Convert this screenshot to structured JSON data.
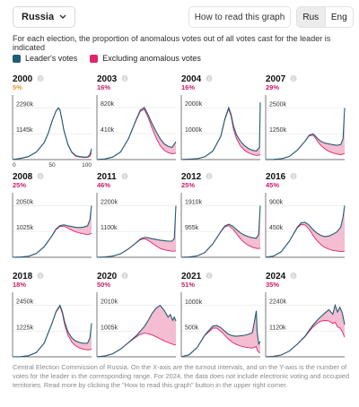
{
  "header": {
    "country": "Russia",
    "howto_label": "How to read this graph",
    "lang_options": [
      "Rus",
      "Eng"
    ],
    "active_lang": "Rus"
  },
  "description": "For each election, the proportion of anomalous votes out of all votes cast for the leader is indicated",
  "legend": {
    "leader_label": "Leader's votes",
    "excluding_label": "Excluding anomalous votes"
  },
  "colors": {
    "leader": "#1f5e72",
    "excluding": "#e0246e",
    "excluding_fill": "#f4bdd1",
    "pct_orange": "#e39a2a",
    "pct_magenta": "#c81d6a",
    "axis": "#444444",
    "grid": "#e4e4e4"
  },
  "info_icon_glyph": "i",
  "chart_data": [
    {
      "type": "line",
      "title": "2000",
      "pct": "5%",
      "pct_color": "orange",
      "ytick_top": "2290k",
      "ytick_mid": "1145k",
      "xticks": [
        "0",
        "50",
        "100"
      ],
      "ylim": [
        0,
        2700
      ],
      "x": [
        0,
        10,
        20,
        30,
        40,
        45,
        50,
        55,
        58,
        60,
        62,
        65,
        70,
        75,
        80,
        85,
        90,
        95,
        98,
        100
      ],
      "series": [
        {
          "values": [
            0,
            50,
            130,
            330,
            750,
            1150,
            1700,
            2150,
            2290,
            2200,
            1850,
            1300,
            680,
            330,
            170,
            130,
            110,
            120,
            210,
            480
          ]
        },
        {
          "values": [
            0,
            50,
            130,
            330,
            750,
            1150,
            1700,
            2150,
            2290,
            2200,
            1850,
            1290,
            660,
            310,
            150,
            110,
            90,
            95,
            150,
            300
          ]
        }
      ]
    },
    {
      "type": "line",
      "title": "2003",
      "pct": "16%",
      "pct_color": "magenta",
      "ytick_top": "820k",
      "ytick_mid": "410k",
      "xticks": [],
      "ylim": [
        0,
        960
      ],
      "x": [
        0,
        10,
        20,
        30,
        40,
        50,
        55,
        60,
        65,
        70,
        75,
        80,
        85,
        90,
        95,
        100
      ],
      "series": [
        {
          "values": [
            0,
            10,
            40,
            120,
            330,
            640,
            780,
            820,
            700,
            560,
            440,
            330,
            250,
            210,
            190,
            280
          ]
        },
        {
          "values": [
            0,
            10,
            40,
            120,
            330,
            630,
            760,
            790,
            660,
            490,
            340,
            220,
            150,
            110,
            90,
            100
          ]
        }
      ]
    },
    {
      "type": "line",
      "title": "2004",
      "pct": "16%",
      "pct_color": "magenta",
      "ytick_top": "2000k",
      "ytick_mid": "1000k",
      "xticks": [],
      "ylim": [
        0,
        2350
      ],
      "x": [
        0,
        20,
        30,
        40,
        50,
        55,
        60,
        63,
        66,
        70,
        75,
        80,
        85,
        90,
        95,
        99,
        100
      ],
      "series": [
        {
          "values": [
            0,
            30,
            110,
            330,
            900,
            1550,
            2000,
            1750,
            1300,
            950,
            700,
            540,
            430,
            360,
            330,
            470,
            2200
          ]
        },
        {
          "values": [
            0,
            30,
            110,
            330,
            890,
            1520,
            1950,
            1680,
            1180,
            800,
            520,
            360,
            260,
            200,
            160,
            180,
            200
          ]
        }
      ]
    },
    {
      "type": "line",
      "title": "2007",
      "pct": "29%",
      "pct_color": "magenta",
      "ytick_top": "2500k",
      "ytick_mid": "1250k",
      "xticks": [],
      "ylim": [
        0,
        2950
      ],
      "x": [
        0,
        10,
        20,
        30,
        40,
        50,
        55,
        60,
        63,
        66,
        70,
        75,
        80,
        85,
        90,
        95,
        98,
        100
      ],
      "series": [
        {
          "values": [
            0,
            10,
            40,
            150,
            450,
            900,
            1180,
            1240,
            1140,
            1000,
            880,
            800,
            760,
            720,
            690,
            720,
            1000,
            2500
          ]
        },
        {
          "values": [
            0,
            10,
            40,
            150,
            450,
            890,
            1150,
            1180,
            1050,
            860,
            680,
            520,
            400,
            320,
            270,
            240,
            260,
            300
          ]
        }
      ]
    },
    {
      "type": "line",
      "title": "2008",
      "pct": "25%",
      "pct_color": "magenta",
      "ytick_top": "2050k",
      "ytick_mid": "1025k",
      "xticks": [],
      "ylim": [
        0,
        2420
      ],
      "x": [
        0,
        10,
        20,
        30,
        40,
        50,
        55,
        60,
        65,
        70,
        75,
        80,
        85,
        90,
        95,
        98,
        100
      ],
      "series": [
        {
          "values": [
            0,
            10,
            40,
            150,
            420,
            860,
            1120,
            1260,
            1290,
            1250,
            1220,
            1190,
            1180,
            1200,
            1250,
            1500,
            2050
          ]
        },
        {
          "values": [
            0,
            10,
            40,
            150,
            420,
            850,
            1100,
            1220,
            1230,
            1160,
            1080,
            1010,
            960,
            930,
            900,
            920,
            950
          ]
        }
      ]
    },
    {
      "type": "line",
      "title": "2011",
      "pct": "46%",
      "pct_color": "magenta",
      "ytick_top": "2200k",
      "ytick_mid": "1100k",
      "xticks": [],
      "ylim": [
        0,
        2600
      ],
      "x": [
        0,
        10,
        20,
        30,
        40,
        50,
        55,
        60,
        65,
        70,
        75,
        80,
        85,
        90,
        95,
        98,
        100
      ],
      "series": [
        {
          "values": [
            0,
            10,
            50,
            150,
            360,
            630,
            780,
            850,
            830,
            790,
            760,
            730,
            710,
            690,
            690,
            800,
            2200
          ]
        },
        {
          "values": [
            0,
            10,
            50,
            150,
            360,
            620,
            750,
            790,
            720,
            600,
            480,
            380,
            320,
            290,
            260,
            260,
            280
          ]
        }
      ]
    },
    {
      "type": "line",
      "title": "2012",
      "pct": "25%",
      "pct_color": "magenta",
      "ytick_top": "1910k",
      "ytick_mid": "955k",
      "xticks": [],
      "ylim": [
        0,
        2250
      ],
      "x": [
        0,
        10,
        20,
        30,
        40,
        50,
        55,
        60,
        65,
        70,
        75,
        80,
        85,
        90,
        95,
        98,
        100
      ],
      "series": [
        {
          "values": [
            0,
            10,
            50,
            180,
            500,
            950,
            1150,
            1220,
            1150,
            1020,
            900,
            820,
            760,
            720,
            700,
            850,
            1910
          ]
        },
        {
          "values": [
            0,
            10,
            50,
            180,
            500,
            940,
            1120,
            1170,
            1050,
            870,
            680,
            540,
            440,
            370,
            330,
            320,
            340
          ]
        }
      ]
    },
    {
      "type": "line",
      "title": "2016",
      "pct": "45%",
      "pct_color": "magenta",
      "ytick_top": "900k",
      "ytick_mid": "450k",
      "xticks": [],
      "ylim": [
        0,
        1060
      ],
      "x": [
        0,
        10,
        20,
        30,
        40,
        45,
        50,
        55,
        60,
        65,
        70,
        75,
        80,
        85,
        90,
        95,
        98,
        100
      ],
      "series": [
        {
          "values": [
            0,
            20,
            100,
            280,
            520,
            600,
            610,
            560,
            480,
            420,
            380,
            360,
            370,
            400,
            440,
            520,
            700,
            900
          ]
        },
        {
          "values": [
            0,
            20,
            100,
            280,
            510,
            570,
            560,
            490,
            380,
            290,
            220,
            170,
            140,
            120,
            110,
            100,
            100,
            110
          ]
        }
      ]
    },
    {
      "type": "line",
      "title": "2018",
      "pct": "18%",
      "pct_color": "magenta",
      "ytick_top": "2450k",
      "ytick_mid": "1225k",
      "xticks": [],
      "ylim": [
        0,
        2900
      ],
      "x": [
        0,
        10,
        20,
        30,
        40,
        50,
        55,
        60,
        63,
        66,
        70,
        75,
        80,
        85,
        90,
        95,
        98,
        100
      ],
      "series": [
        {
          "values": [
            0,
            10,
            50,
            200,
            650,
            1600,
            2150,
            2450,
            2150,
            1650,
            1200,
            900,
            750,
            680,
            640,
            650,
            900,
            1600
          ]
        },
        {
          "values": [
            0,
            10,
            50,
            200,
            650,
            1590,
            2120,
            2400,
            2070,
            1520,
            1040,
            700,
            520,
            420,
            360,
            330,
            340,
            360
          ]
        }
      ]
    },
    {
      "type": "line",
      "title": "2020",
      "pct": "50%",
      "pct_color": "magenta",
      "ytick_top": "2010k",
      "ytick_mid": "1005k",
      "xticks": [],
      "ylim": [
        0,
        2380
      ],
      "x": [
        0,
        10,
        20,
        30,
        40,
        50,
        55,
        60,
        65,
        70,
        75,
        80,
        85,
        90,
        93,
        96,
        98,
        100
      ],
      "series": [
        {
          "values": [
            0,
            30,
            120,
            300,
            560,
            830,
            1000,
            1180,
            1420,
            1700,
            1900,
            2010,
            1820,
            1550,
            1650,
            1420,
            1550,
            1400
          ]
        },
        {
          "values": [
            0,
            30,
            120,
            300,
            550,
            780,
            880,
            920,
            900,
            850,
            780,
            700,
            620,
            560,
            520,
            490,
            470,
            460
          ]
        }
      ]
    },
    {
      "type": "line",
      "title": "2021",
      "pct": "51%",
      "pct_color": "magenta",
      "ytick_top": "1000k",
      "ytick_mid": "500k",
      "xticks": [],
      "ylim": [
        0,
        1190
      ],
      "x": [
        0,
        10,
        20,
        30,
        40,
        45,
        50,
        55,
        60,
        65,
        70,
        75,
        80,
        85,
        90,
        95,
        96,
        98,
        100
      ],
      "series": [
        {
          "values": [
            0,
            40,
            180,
            430,
            600,
            610,
            570,
            500,
            440,
            410,
            400,
            410,
            420,
            440,
            470,
            900,
            500,
            250,
            300
          ]
        },
        {
          "values": [
            0,
            40,
            180,
            420,
            560,
            560,
            500,
            420,
            340,
            280,
            240,
            210,
            190,
            180,
            170,
            200,
            130,
            90,
            80
          ]
        }
      ]
    },
    {
      "type": "line",
      "title": "2024",
      "pct": "35%",
      "pct_color": "magenta",
      "ytick_top": "2240k",
      "ytick_mid": "1120k",
      "xticks": [],
      "ylim": [
        0,
        2650
      ],
      "x": [
        0,
        10,
        20,
        30,
        40,
        50,
        55,
        60,
        65,
        70,
        75,
        80,
        85,
        88,
        91,
        94,
        97,
        100
      ],
      "series": [
        {
          "values": [
            0,
            20,
            80,
            250,
            550,
            900,
            1150,
            1380,
            1580,
            1750,
            1900,
            2050,
            1850,
            2240,
            1950,
            2150,
            1900,
            1400
          ]
        },
        {
          "values": [
            0,
            20,
            80,
            250,
            540,
            880,
            1100,
            1300,
            1450,
            1550,
            1580,
            1560,
            1450,
            1500,
            1300,
            1250,
            1100,
            850
          ]
        }
      ]
    }
  ],
  "footnote": "Central Election Commission of Russia. On the X-axis are the turnout intervals, and on the Y-axis is the number of votes for the leader in the corresponding range. For 2024, the data does not include electronic voting and occupied territories. Read more by clicking the \"How to read this graph\" button in the upper right corner."
}
